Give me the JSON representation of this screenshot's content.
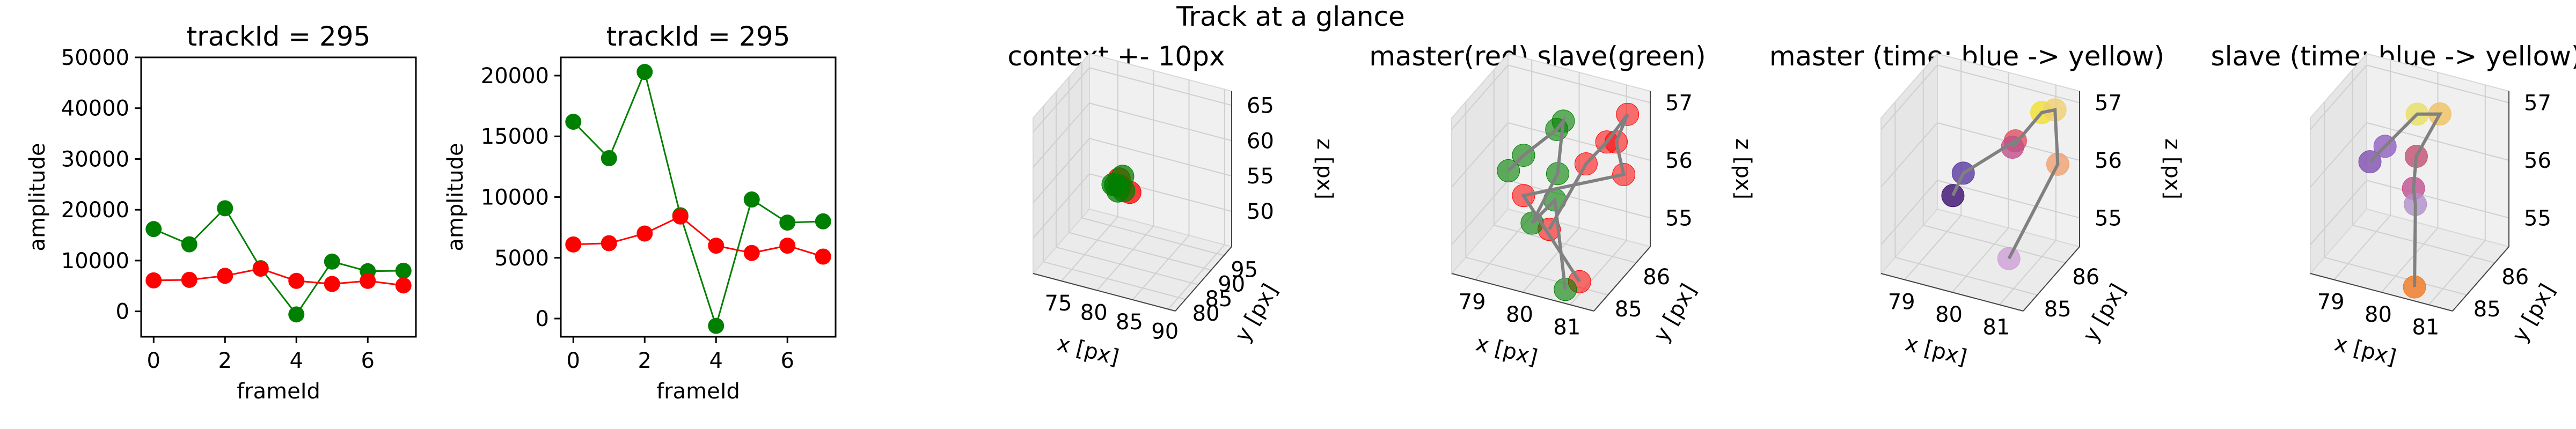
{
  "suptitle": "Track at a glance",
  "chart_data": [
    {
      "type": "line",
      "title": "trackId = 295",
      "xlabel": "frameId",
      "ylabel": "amplitude",
      "xlim": [
        -0.35,
        7.35
      ],
      "ylim": [
        -5000,
        50000
      ],
      "xticks": [
        0,
        2,
        4,
        6
      ],
      "yticks": [
        0,
        10000,
        20000,
        30000,
        40000,
        50000
      ],
      "grid": false,
      "x": [
        0,
        1,
        2,
        3,
        4,
        5,
        6,
        7
      ],
      "series": [
        {
          "color": "#008000",
          "values": [
            16200,
            13200,
            20300,
            8500,
            -600,
            9800,
            7900,
            8000
          ]
        },
        {
          "color": "#ff0000",
          "values": [
            6100,
            6200,
            7000,
            8400,
            6000,
            5400,
            6000,
            5100
          ]
        }
      ]
    },
    {
      "type": "line",
      "title": "trackId = 295",
      "xlabel": "frameId",
      "ylabel": "amplitude",
      "xlim": [
        -0.35,
        7.35
      ],
      "ylim": [
        -1500,
        21500
      ],
      "xticks": [
        0,
        2,
        4,
        6
      ],
      "yticks": [
        0,
        5000,
        10000,
        15000,
        20000
      ],
      "grid": false,
      "x": [
        0,
        1,
        2,
        3,
        4,
        5,
        6,
        7
      ],
      "series": [
        {
          "color": "#008000",
          "values": [
            16200,
            13200,
            20300,
            8500,
            -600,
            9800,
            7900,
            8000
          ]
        },
        {
          "color": "#ff0000",
          "values": [
            6100,
            6200,
            7000,
            8400,
            6000,
            5400,
            6000,
            5100
          ]
        }
      ]
    },
    {
      "type": "scatter3d",
      "title": "context +- 10px",
      "xlabel": "x [px]",
      "ylabel": "y [px]",
      "zlabel": "z [px]",
      "xlim": [
        71,
        91
      ],
      "ylim": [
        76,
        98
      ],
      "zlim": [
        45,
        67
      ],
      "xticks": [
        75,
        80,
        85,
        90
      ],
      "yticks": [
        80,
        85,
        90,
        95
      ],
      "zticks": [
        50,
        55,
        60,
        65
      ],
      "points": [
        {
          "x": 80,
          "y": 85,
          "z": 56,
          "color": "#ff0000"
        },
        {
          "x": 81,
          "y": 86,
          "z": 55,
          "color": "#ff0000"
        },
        {
          "x": 79.5,
          "y": 86,
          "z": 56.5,
          "color": "#ff0000"
        },
        {
          "x": 79,
          "y": 85,
          "z": 56,
          "color": "#008000"
        },
        {
          "x": 80,
          "y": 86,
          "z": 57,
          "color": "#008000"
        },
        {
          "x": 79.5,
          "y": 85.5,
          "z": 55,
          "color": "#008000"
        },
        {
          "x": 80.5,
          "y": 85,
          "z": 55.5,
          "color": "#008000"
        },
        {
          "x": 79,
          "y": 86,
          "z": 55.5,
          "color": "#008000"
        }
      ]
    },
    {
      "type": "scatter3d",
      "title": "master(red) slave(green)",
      "xlabel": "x [px]",
      "ylabel": "y [px]",
      "zlabel": "z [px]",
      "xlim": [
        78.5,
        81.5
      ],
      "ylim": [
        84.5,
        86.5
      ],
      "zlim": [
        54.5,
        57.2
      ],
      "xticks": [
        79,
        80,
        81
      ],
      "yticks": [
        85,
        86
      ],
      "zticks": [
        55,
        56,
        57
      ],
      "masterPoints": [
        {
          "x": 80.2,
          "y": 85.1,
          "z": 55.3
        },
        {
          "x": 80.8,
          "y": 85.4,
          "z": 56.4
        },
        {
          "x": 81.0,
          "y": 85.8,
          "z": 56.6
        },
        {
          "x": 81.2,
          "y": 86.2,
          "z": 56.9
        },
        {
          "x": 80.9,
          "y": 86.3,
          "z": 56.3
        },
        {
          "x": 81.0,
          "y": 86.4,
          "z": 55.7
        },
        {
          "x": 79.6,
          "y": 85.2,
          "z": 55.7
        },
        {
          "x": 80.9,
          "y": 85.0,
          "z": 54.6
        }
      ],
      "slavePoints": [
        {
          "x": 79.4,
          "y": 85.0,
          "z": 56.2
        },
        {
          "x": 79.6,
          "y": 85.2,
          "z": 56.4
        },
        {
          "x": 80.3,
          "y": 85.2,
          "z": 57.0
        },
        {
          "x": 80.2,
          "y": 85.6,
          "z": 56.9
        },
        {
          "x": 80.2,
          "y": 85.4,
          "z": 56.1
        },
        {
          "x": 79.9,
          "y": 85.0,
          "z": 55.4
        },
        {
          "x": 80.2,
          "y": 85.3,
          "z": 55.7
        },
        {
          "x": 80.6,
          "y": 85.0,
          "z": 54.4
        }
      ]
    },
    {
      "type": "scatter3d",
      "title": "master (time: blue -> yellow)",
      "xlabel": "x [px]",
      "ylabel": "y [px]",
      "zlabel": "z [px]",
      "xlim": [
        78.5,
        81.5
      ],
      "ylim": [
        84.5,
        86.5
      ],
      "zlim": [
        54.5,
        57.2
      ],
      "xticks": [
        79,
        80,
        81
      ],
      "yticks": [
        85,
        86
      ],
      "zticks": [
        55,
        56,
        57
      ],
      "colorMap": [
        "#3b0f70",
        "#5a3aa0",
        "#e05060",
        "#c0508a",
        "#f0e030",
        "#f0d070",
        "#f0a070",
        "#d0a0d8"
      ],
      "points": [
        {
          "x": 79.6,
          "y": 85.2,
          "z": 55.7
        },
        {
          "x": 79.7,
          "y": 85.4,
          "z": 56.0
        },
        {
          "x": 80.8,
          "y": 85.4,
          "z": 56.8
        },
        {
          "x": 80.5,
          "y": 85.8,
          "z": 56.4
        },
        {
          "x": 81.0,
          "y": 86.0,
          "z": 57.0
        },
        {
          "x": 81.1,
          "y": 86.3,
          "z": 56.9
        },
        {
          "x": 81.1,
          "y": 86.4,
          "z": 55.9
        },
        {
          "x": 80.9,
          "y": 85.0,
          "z": 55.0
        }
      ]
    },
    {
      "type": "scatter3d",
      "title": "slave (time: blue -> yellow)",
      "xlabel": "x [px]",
      "ylabel": "y [px]",
      "zlabel": "z [px]",
      "xlim": [
        78.5,
        81.5
      ],
      "ylim": [
        84.5,
        86.5
      ],
      "zlim": [
        54.5,
        57.2
      ],
      "xticks": [
        79,
        80,
        81
      ],
      "yticks": [
        85,
        86
      ],
      "zticks": [
        55,
        56,
        57
      ],
      "colorMap": [
        "#8050b0",
        "#9060c0",
        "#e8e060",
        "#f0c060",
        "#c05070",
        "#c05090",
        "#b090c8",
        "#f07820"
      ],
      "points": [
        {
          "x": 79.4,
          "y": 85.1,
          "z": 56.3
        },
        {
          "x": 79.6,
          "y": 85.3,
          "z": 56.5
        },
        {
          "x": 80.1,
          "y": 85.6,
          "z": 57.0
        },
        {
          "x": 80.4,
          "y": 85.9,
          "z": 56.9
        },
        {
          "x": 80.2,
          "y": 85.4,
          "z": 56.4
        },
        {
          "x": 80.2,
          "y": 85.3,
          "z": 55.9
        },
        {
          "x": 80.3,
          "y": 85.2,
          "z": 55.7
        },
        {
          "x": 80.4,
          "y": 85.0,
          "z": 54.4
        }
      ]
    }
  ]
}
